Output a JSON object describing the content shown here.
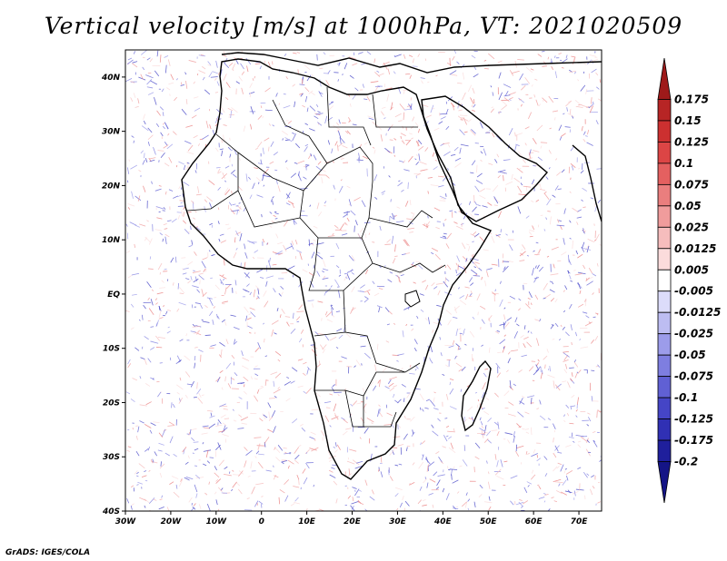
{
  "title": "Vertical velocity [m/s] at 1000hPa, VT: 2021020509",
  "credit": "GrADS: IGES/COLA",
  "chart_data": {
    "type": "heatmap",
    "variable": "Vertical velocity",
    "units": "m/s",
    "level": "1000hPa",
    "valid_time": "2021020509",
    "lon_range": [
      -30,
      75
    ],
    "lat_range": [
      -40,
      45
    ],
    "x_ticks": [
      {
        "value": -30,
        "label": "30W"
      },
      {
        "value": -20,
        "label": "20W"
      },
      {
        "value": -10,
        "label": "10W"
      },
      {
        "value": 0,
        "label": "0"
      },
      {
        "value": 10,
        "label": "10E"
      },
      {
        "value": 20,
        "label": "20E"
      },
      {
        "value": 30,
        "label": "30E"
      },
      {
        "value": 40,
        "label": "40E"
      },
      {
        "value": 50,
        "label": "50E"
      },
      {
        "value": 60,
        "label": "60E"
      },
      {
        "value": 70,
        "label": "70E"
      }
    ],
    "y_ticks": [
      {
        "value": 40,
        "label": "40N"
      },
      {
        "value": 30,
        "label": "30N"
      },
      {
        "value": 20,
        "label": "20N"
      },
      {
        "value": 10,
        "label": "10N"
      },
      {
        "value": 0,
        "label": "EQ"
      },
      {
        "value": -10,
        "label": "10S"
      },
      {
        "value": -20,
        "label": "20S"
      },
      {
        "value": -30,
        "label": "30S"
      },
      {
        "value": -40,
        "label": "40S"
      }
    ],
    "colorbar": {
      "labels": [
        "0.175",
        "0.15",
        "0.125",
        "0.1",
        "0.075",
        "0.05",
        "0.025",
        "0.0125",
        "0.005",
        "-0.005",
        "-0.0125",
        "-0.025",
        "-0.05",
        "-0.075",
        "-0.1",
        "-0.125",
        "-0.175",
        "-0.2"
      ],
      "colors": [
        "#9e1a1a",
        "#b72525",
        "#cc3030",
        "#dc4545",
        "#e46060",
        "#ea7e7e",
        "#f09c9c",
        "#f6bdbd",
        "#fbdcdc",
        "#ffffff",
        "#dcdcfa",
        "#bdbdf2",
        "#9c9cea",
        "#7e7ee0",
        "#6060d4",
        "#4545c6",
        "#3030b4",
        "#1f1f9c",
        "#141486"
      ]
    }
  }
}
